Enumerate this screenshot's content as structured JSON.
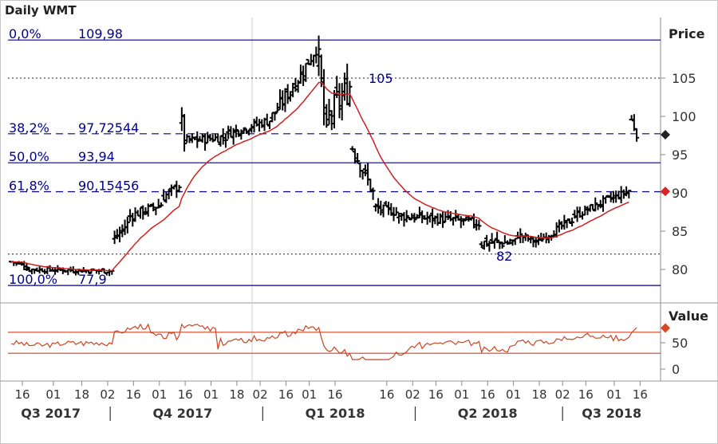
{
  "title": "Daily WMT",
  "price_axis_label": "Price",
  "value_axis_label": "Value",
  "colors": {
    "fib": "#00008B",
    "ma": "#CC2222",
    "osc": "#CC4422",
    "bars": "#000000",
    "marker_last": "#222222",
    "marker_ma": "#DD2222",
    "marker_osc": "#DD4422"
  },
  "chart_data": {
    "type": "ohlc",
    "ylim": [
      76,
      111
    ],
    "yticks": [
      80,
      85,
      90,
      95,
      100,
      105
    ],
    "xticks": [
      {
        "label": "16",
        "idx": 0
      },
      {
        "label": "01",
        "idx": 12
      },
      {
        "label": "18",
        "idx": 23
      },
      {
        "label": "02",
        "idx": 33
      },
      {
        "label": "16",
        "idx": 43
      },
      {
        "label": "01",
        "idx": 53
      },
      {
        "label": "16",
        "idx": 63
      },
      {
        "label": "01",
        "idx": 73
      },
      {
        "label": "18",
        "idx": 83
      },
      {
        "label": "02",
        "idx": 92
      },
      {
        "label": "16",
        "idx": 102
      },
      {
        "label": "01",
        "idx": 111
      },
      {
        "label": "16",
        "idx": 121
      },
      {
        "label": "16",
        "idx": 141
      },
      {
        "label": "02",
        "idx": 151
      },
      {
        "label": "16",
        "idx": 160
      },
      {
        "label": "01",
        "idx": 170
      },
      {
        "label": "16",
        "idx": 180
      },
      {
        "label": "01",
        "idx": 190
      },
      {
        "label": "18",
        "idx": 200
      },
      {
        "label": "02",
        "idx": 209
      },
      {
        "label": "16",
        "idx": 218
      },
      {
        "label": "01",
        "idx": 229
      },
      {
        "label": "16",
        "idx": 239
      }
    ],
    "quarters": [
      {
        "label": "Q3 2017",
        "idx": 11
      },
      {
        "label": "Q4 2017",
        "idx": 62
      },
      {
        "label": "Q1 2018",
        "idx": 121
      },
      {
        "label": "Q2 2018",
        "idx": 180
      },
      {
        "label": "Q3 2018",
        "idx": 228
      }
    ],
    "quarter_separators": [
      34,
      93,
      152,
      209
    ],
    "fib_levels": [
      {
        "pct": "0,0%",
        "value": 109.98,
        "label": "109,98",
        "style": "solid"
      },
      {
        "pct": "38,2%",
        "value": 97.72544,
        "label": "97,72544",
        "style": "dashed"
      },
      {
        "pct": "50,0%",
        "value": 93.94,
        "label": "93,94",
        "style": "solid"
      },
      {
        "pct": "61,8%",
        "value": 90.15456,
        "label": "90,15456",
        "style": "dashed"
      },
      {
        "pct": "100,0%",
        "value": 77.9,
        "label": "77,9",
        "style": "solid"
      }
    ],
    "horizontal_lines": [
      {
        "value": 105,
        "label": "105",
        "style": "dotted"
      },
      {
        "value": 82,
        "label": "82",
        "style": "dotted"
      }
    ],
    "last_price": 97.6,
    "last_ma": 90.2,
    "osc": {
      "ylim": [
        -10,
        90
      ],
      "yticks": [
        0,
        50
      ],
      "levels": [
        70,
        30
      ],
      "last": 78
    },
    "segments": [
      {
        "from": 0,
        "to": 6,
        "start": 81,
        "end": 80.5,
        "noise": 0.3,
        "range": 0.5
      },
      {
        "from": 6,
        "to": 39,
        "start": 80,
        "end": 79.8,
        "noise": 0.3,
        "range": 0.5
      },
      {
        "from": 40,
        "to": 45,
        "start": 84,
        "end": 86,
        "noise": 0.5,
        "range": 1.0
      },
      {
        "from": 46,
        "to": 58,
        "start": 87,
        "end": 88.5,
        "noise": 0.6,
        "range": 1.0
      },
      {
        "from": 59,
        "to": 65,
        "start": 89.5,
        "end": 91,
        "noise": 0.6,
        "range": 1.0
      },
      {
        "from": 66,
        "to": 67,
        "start": 99,
        "end": 97,
        "noise": 1.2,
        "range": 1.5
      },
      {
        "from": 68,
        "to": 83,
        "start": 96.8,
        "end": 97.3,
        "noise": 0.6,
        "range": 1.0
      },
      {
        "from": 84,
        "to": 100,
        "start": 97.8,
        "end": 99.5,
        "noise": 0.6,
        "range": 1.0
      },
      {
        "from": 101,
        "to": 112,
        "start": 100,
        "end": 105.5,
        "noise": 1.0,
        "range": 1.2
      },
      {
        "from": 113,
        "to": 118,
        "start": 106,
        "end": 109,
        "noise": 1.0,
        "range": 1.5
      },
      {
        "from": 119,
        "to": 122,
        "start": 107,
        "end": 97,
        "noise": 2.0,
        "range": 2.0
      },
      {
        "from": 123,
        "to": 131,
        "start": 100,
        "end": 104,
        "noise": 2.0,
        "range": 2.0
      },
      {
        "from": 132,
        "to": 140,
        "start": 96,
        "end": 90,
        "noise": 1.0,
        "range": 1.5
      },
      {
        "from": 141,
        "to": 149,
        "start": 88,
        "end": 87.5,
        "noise": 0.6,
        "range": 1.0
      },
      {
        "from": 150,
        "to": 170,
        "start": 87,
        "end": 86.5,
        "noise": 0.6,
        "range": 1.0
      },
      {
        "from": 171,
        "to": 181,
        "start": 86.5,
        "end": 86,
        "noise": 0.6,
        "range": 1.0
      },
      {
        "from": 182,
        "to": 195,
        "start": 83.5,
        "end": 83.5,
        "noise": 0.8,
        "range": 1.0
      },
      {
        "from": 196,
        "to": 204,
        "start": 84.5,
        "end": 83.5,
        "noise": 0.5,
        "range": 0.8
      },
      {
        "from": 205,
        "to": 217,
        "start": 84,
        "end": 86.5,
        "noise": 0.5,
        "range": 0.8
      },
      {
        "from": 218,
        "to": 233,
        "start": 87,
        "end": 89.5,
        "noise": 0.5,
        "range": 0.8
      },
      {
        "from": 234,
        "to": 239,
        "start": 89.5,
        "end": 90.3,
        "noise": 0.4,
        "range": 0.8
      },
      {
        "from": 240,
        "to": 242,
        "start": 99.5,
        "end": 97.6,
        "noise": 0.4,
        "range": 1.0
      }
    ],
    "gaps": [
      [
        29,
        30
      ],
      [
        125,
        126
      ]
    ]
  }
}
